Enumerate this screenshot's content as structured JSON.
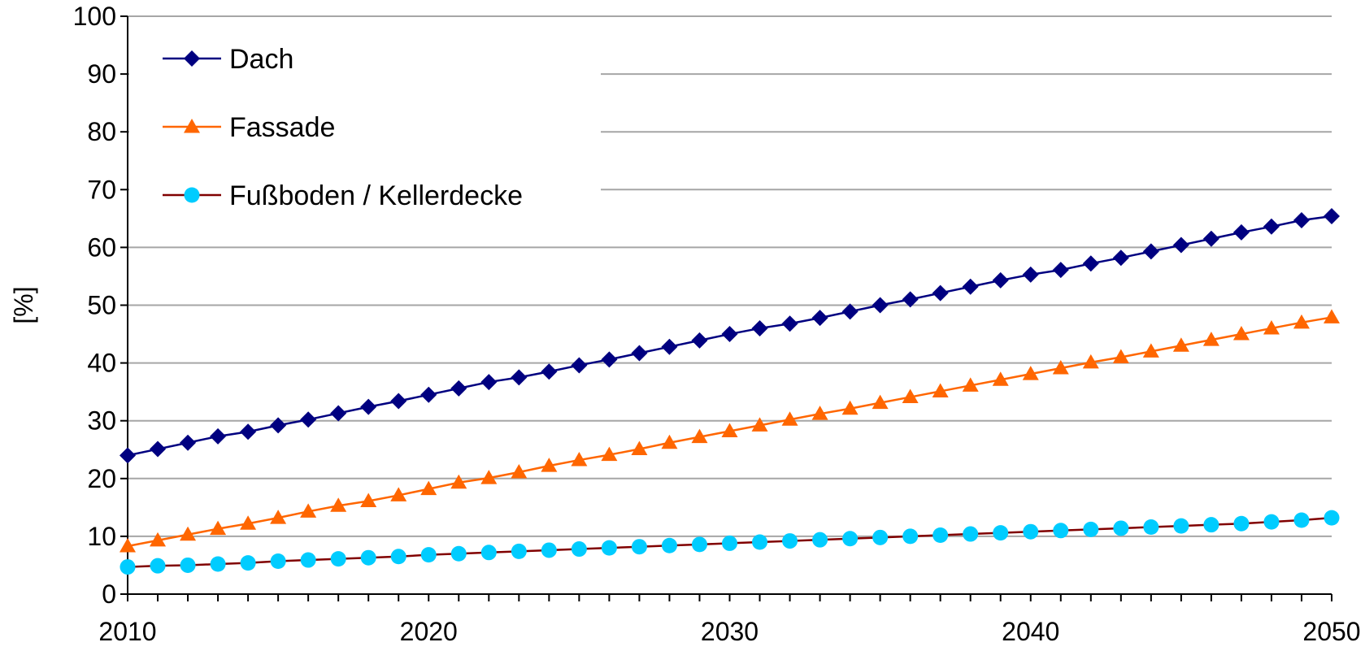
{
  "chart_data": {
    "type": "line",
    "title": "",
    "xlabel": "",
    "ylabel": "[%]",
    "xlim": [
      2010,
      2050
    ],
    "ylim": [
      0,
      100
    ],
    "x_ticks": [
      "2010",
      "2020",
      "2030",
      "2040",
      "2050"
    ],
    "y_ticks": [
      "0",
      "10",
      "20",
      "30",
      "40",
      "50",
      "60",
      "70",
      "80",
      "90",
      "100"
    ],
    "grid": "horizontal",
    "legend_position": "top-left",
    "x": [
      2010,
      2011,
      2012,
      2013,
      2014,
      2015,
      2016,
      2017,
      2018,
      2019,
      2020,
      2021,
      2022,
      2023,
      2024,
      2025,
      2026,
      2027,
      2028,
      2029,
      2030,
      2031,
      2032,
      2033,
      2034,
      2035,
      2036,
      2037,
      2038,
      2039,
      2040,
      2041,
      2042,
      2043,
      2044,
      2045,
      2046,
      2047,
      2048,
      2049,
      2050
    ],
    "series": [
      {
        "name": "Dach",
        "color": "#000080",
        "marker": "diamond",
        "values": [
          24.0,
          25.1,
          26.2,
          27.3,
          28.1,
          29.2,
          30.2,
          31.3,
          32.4,
          33.4,
          34.5,
          35.6,
          36.7,
          37.5,
          38.5,
          39.6,
          40.6,
          41.7,
          42.8,
          43.9,
          45.0,
          46.0,
          46.8,
          47.8,
          48.9,
          50.0,
          51.0,
          52.1,
          53.2,
          54.3,
          55.3,
          56.1,
          57.2,
          58.2,
          59.3,
          60.4,
          61.5,
          62.6,
          63.6,
          64.7,
          65.4
        ]
      },
      {
        "name": "Fassade",
        "color": "#FF6600",
        "marker": "triangle",
        "values": [
          8.3,
          9.3,
          10.3,
          11.3,
          12.2,
          13.2,
          14.3,
          15.3,
          16.1,
          17.1,
          18.2,
          19.3,
          20.1,
          21.1,
          22.2,
          23.2,
          24.1,
          25.1,
          26.2,
          27.2,
          28.2,
          29.2,
          30.2,
          31.2,
          32.1,
          33.1,
          34.1,
          35.1,
          36.1,
          37.1,
          38.1,
          39.1,
          40.1,
          41.0,
          42.0,
          43.0,
          44.0,
          45.0,
          46.0,
          47.0,
          47.9
        ]
      },
      {
        "name": "Fußboden / Kellerdecke",
        "color": "#00CCFF",
        "line_color": "#800000",
        "marker": "circle",
        "values": [
          4.7,
          4.9,
          5.0,
          5.2,
          5.4,
          5.7,
          5.9,
          6.1,
          6.3,
          6.5,
          6.8,
          7.0,
          7.2,
          7.4,
          7.6,
          7.8,
          8.0,
          8.2,
          8.4,
          8.6,
          8.8,
          9.0,
          9.2,
          9.4,
          9.6,
          9.8,
          10.0,
          10.2,
          10.4,
          10.6,
          10.8,
          11.0,
          11.2,
          11.4,
          11.6,
          11.8,
          12.0,
          12.2,
          12.5,
          12.8,
          13.2
        ]
      }
    ]
  }
}
